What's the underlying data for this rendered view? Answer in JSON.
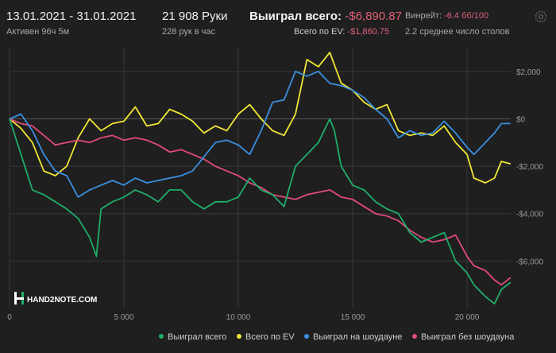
{
  "header": {
    "date_range": "13.01.2021 - 31.01.2021",
    "active": "Активен 96ч 5м",
    "hands": "21 908 Руки",
    "hands_per_hour": "228 рук в час",
    "won_total_label": "Выиграл всего:",
    "won_total_value": "-$6,890.87",
    "ev_total_label": "Всего по EV:",
    "ev_total_value": "-$1,860.75",
    "winrate_label": "Винрейт:",
    "winrate_value": "-6.4 бб/100",
    "avg_tables": "2.2 среднее число столов"
  },
  "watermark": {
    "brand_text": "HAND2NOTE.COM"
  },
  "icons": {
    "settings": "gear-icon",
    "logo": "hand2note-logo-icon"
  },
  "chart_data": {
    "type": "line",
    "xlim": [
      0,
      21908
    ],
    "ylim": [
      -8000,
      3000
    ],
    "x_ticks": [
      0,
      5000,
      10000,
      15000,
      20000
    ],
    "x_tick_labels": [
      "0",
      "5 000",
      "10 000",
      "15 000",
      "20 000"
    ],
    "y_ticks": [
      2000,
      0,
      -2000,
      -4000,
      -6000
    ],
    "y_tick_labels": [
      "$2,000",
      "$0",
      "-$2,000",
      "-$4,000",
      "-$6,000"
    ],
    "grid": true,
    "legend_position": "bottom",
    "series": [
      {
        "name": "Выиграл всего",
        "color": "#1fae6a",
        "x": [
          0,
          500,
          1000,
          1500,
          2000,
          2500,
          3000,
          3500,
          3800,
          4000,
          4500,
          5000,
          5500,
          6000,
          6500,
          7000,
          7500,
          8000,
          8500,
          9000,
          9500,
          10000,
          10500,
          11000,
          11500,
          12000,
          12500,
          13000,
          13500,
          14000,
          14200,
          14500,
          15000,
          15500,
          16000,
          16500,
          17000,
          17500,
          18000,
          18500,
          19000,
          19500,
          20000,
          20300,
          20800,
          21200,
          21500,
          21900
        ],
        "y": [
          0,
          -1500,
          -3000,
          -3200,
          -3500,
          -3800,
          -4200,
          -5000,
          -5800,
          -3800,
          -3500,
          -3300,
          -3000,
          -3200,
          -3500,
          -3000,
          -3000,
          -3500,
          -3800,
          -3500,
          -3500,
          -3300,
          -2500,
          -3000,
          -3200,
          -3700,
          -2000,
          -1500,
          -1000,
          0,
          -500,
          -2000,
          -2800,
          -3000,
          -3500,
          -3800,
          -4000,
          -4800,
          -5200,
          -5000,
          -4800,
          -6000,
          -6500,
          -7000,
          -7500,
          -7800,
          -7200,
          -6900
        ]
      },
      {
        "name": "Всего по EV",
        "color": "#f0e634",
        "x": [
          0,
          500,
          1000,
          1500,
          2000,
          2500,
          3000,
          3500,
          4000,
          4500,
          5000,
          5500,
          6000,
          6500,
          7000,
          7500,
          8000,
          8500,
          9000,
          9500,
          10000,
          10500,
          11000,
          11500,
          12000,
          12500,
          13000,
          13500,
          14000,
          14500,
          15000,
          15500,
          16000,
          16500,
          17000,
          17500,
          18000,
          18500,
          19000,
          19500,
          20000,
          20300,
          20800,
          21200,
          21500,
          21900
        ],
        "y": [
          0,
          -400,
          -1000,
          -2200,
          -2400,
          -2000,
          -800,
          0,
          -500,
          -200,
          -100,
          500,
          -300,
          -200,
          400,
          200,
          -100,
          -600,
          -300,
          -500,
          200,
          600,
          0,
          -500,
          -700,
          200,
          2500,
          2200,
          2800,
          1500,
          1200,
          700,
          400,
          600,
          -500,
          -700,
          -600,
          -700,
          -300,
          -1000,
          -1500,
          -2500,
          -2700,
          -2500,
          -1800,
          -1900
        ]
      },
      {
        "name": "Выиграл на шоудауне",
        "color": "#3a8fe0",
        "x": [
          0,
          500,
          1000,
          1500,
          2000,
          2500,
          3000,
          3500,
          4000,
          4500,
          5000,
          5500,
          6000,
          6500,
          7000,
          7500,
          8000,
          8500,
          9000,
          9500,
          10000,
          10500,
          11000,
          11500,
          12000,
          12500,
          13000,
          13500,
          14000,
          14500,
          15000,
          15500,
          16000,
          16500,
          17000,
          17500,
          18000,
          18500,
          19000,
          19500,
          20000,
          20300,
          20800,
          21200,
          21500,
          21900
        ],
        "y": [
          0,
          200,
          -500,
          -1500,
          -2200,
          -2400,
          -3300,
          -3000,
          -2800,
          -2600,
          -2800,
          -2500,
          -2700,
          -2600,
          -2500,
          -2400,
          -2200,
          -1600,
          -1000,
          -900,
          -1100,
          -1500,
          -500,
          700,
          800,
          2000,
          1800,
          2000,
          1500,
          1400,
          1200,
          900,
          400,
          0,
          -800,
          -500,
          -700,
          -600,
          -100,
          -600,
          -1200,
          -1500,
          -1000,
          -600,
          -200,
          -200
        ]
      },
      {
        "name": "Выиграл без шоудауна",
        "color": "#e14a7a",
        "x": [
          0,
          500,
          1000,
          1500,
          2000,
          2500,
          3000,
          3500,
          4000,
          4500,
          5000,
          5500,
          6000,
          6500,
          7000,
          7500,
          8000,
          8500,
          9000,
          9500,
          10000,
          10500,
          11000,
          11500,
          12000,
          12500,
          13000,
          13500,
          14000,
          14500,
          15000,
          15500,
          16000,
          16500,
          17000,
          17500,
          18000,
          18500,
          19000,
          19500,
          20000,
          20300,
          20800,
          21200,
          21500,
          21900
        ],
        "y": [
          0,
          -200,
          -300,
          -700,
          -1100,
          -1000,
          -900,
          -1000,
          -800,
          -700,
          -900,
          -800,
          -900,
          -1100,
          -1400,
          -1300,
          -1500,
          -1700,
          -2000,
          -2200,
          -2400,
          -2700,
          -2900,
          -3200,
          -3300,
          -3400,
          -3200,
          -3100,
          -3000,
          -3300,
          -3400,
          -3700,
          -4000,
          -4100,
          -4300,
          -4700,
          -5000,
          -5200,
          -5100,
          -4900,
          -5800,
          -6200,
          -6400,
          -6800,
          -7000,
          -6700
        ]
      }
    ]
  }
}
